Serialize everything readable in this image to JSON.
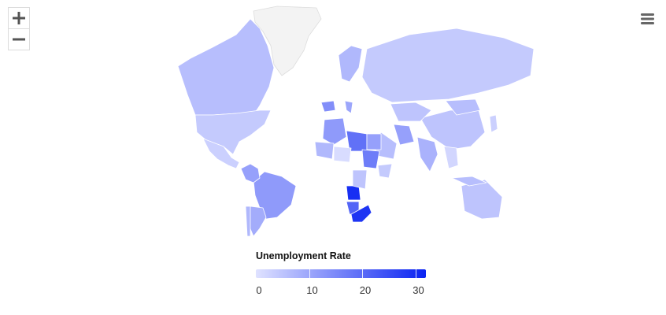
{
  "controls": {
    "zoom_in_icon": "plus-icon",
    "zoom_out_icon": "minus-icon",
    "menu_icon": "hamburger-icon"
  },
  "legend": {
    "title": "Unemployment Rate",
    "min": 0,
    "max": 32,
    "ticks": [
      "0",
      "10",
      "20",
      "30"
    ],
    "tick_values": [
      0,
      10,
      20,
      30
    ],
    "color_low": "#dfe2ff",
    "color_high": "#0a23f2"
  },
  "colors": {
    "no_data": "#f3f3f3",
    "border": "#ffffff"
  },
  "map": {
    "regions": [
      {
        "name": "Greenland",
        "value": null
      },
      {
        "name": "Canada",
        "value": 6
      },
      {
        "name": "United States",
        "value": 4
      },
      {
        "name": "Mexico",
        "value": 3
      },
      {
        "name": "Brazil",
        "value": 12
      },
      {
        "name": "Colombia",
        "value": 11
      },
      {
        "name": "Argentina",
        "value": 9
      },
      {
        "name": "Chile",
        "value": 7
      },
      {
        "name": "Russia",
        "value": 4
      },
      {
        "name": "China",
        "value": 5
      },
      {
        "name": "India",
        "value": 8
      },
      {
        "name": "Kazakhstan",
        "value": 5
      },
      {
        "name": "Iran",
        "value": 11
      },
      {
        "name": "Saudi Arabia",
        "value": 6
      },
      {
        "name": "Mongolia",
        "value": 6
      },
      {
        "name": "Australia",
        "value": 5
      },
      {
        "name": "Algeria",
        "value": 12
      },
      {
        "name": "Libya",
        "value": 19
      },
      {
        "name": "Egypt",
        "value": 11
      },
      {
        "name": "Mali",
        "value": 7
      },
      {
        "name": "Niger",
        "value": 1
      },
      {
        "name": "Sudan",
        "value": 17
      },
      {
        "name": "Ethiopia",
        "value": 4
      },
      {
        "name": "Angola",
        "value": 30
      },
      {
        "name": "Namibia",
        "value": 21
      },
      {
        "name": "South Africa",
        "value": 29
      },
      {
        "name": "DR Congo",
        "value": 5
      },
      {
        "name": "Spain",
        "value": 14
      },
      {
        "name": "Italy",
        "value": 10
      },
      {
        "name": "Scandinavia",
        "value": 7
      },
      {
        "name": "Indonesia",
        "value": 6
      },
      {
        "name": "Southeast Asia",
        "value": 2
      },
      {
        "name": "Japan",
        "value": 3
      }
    ]
  }
}
